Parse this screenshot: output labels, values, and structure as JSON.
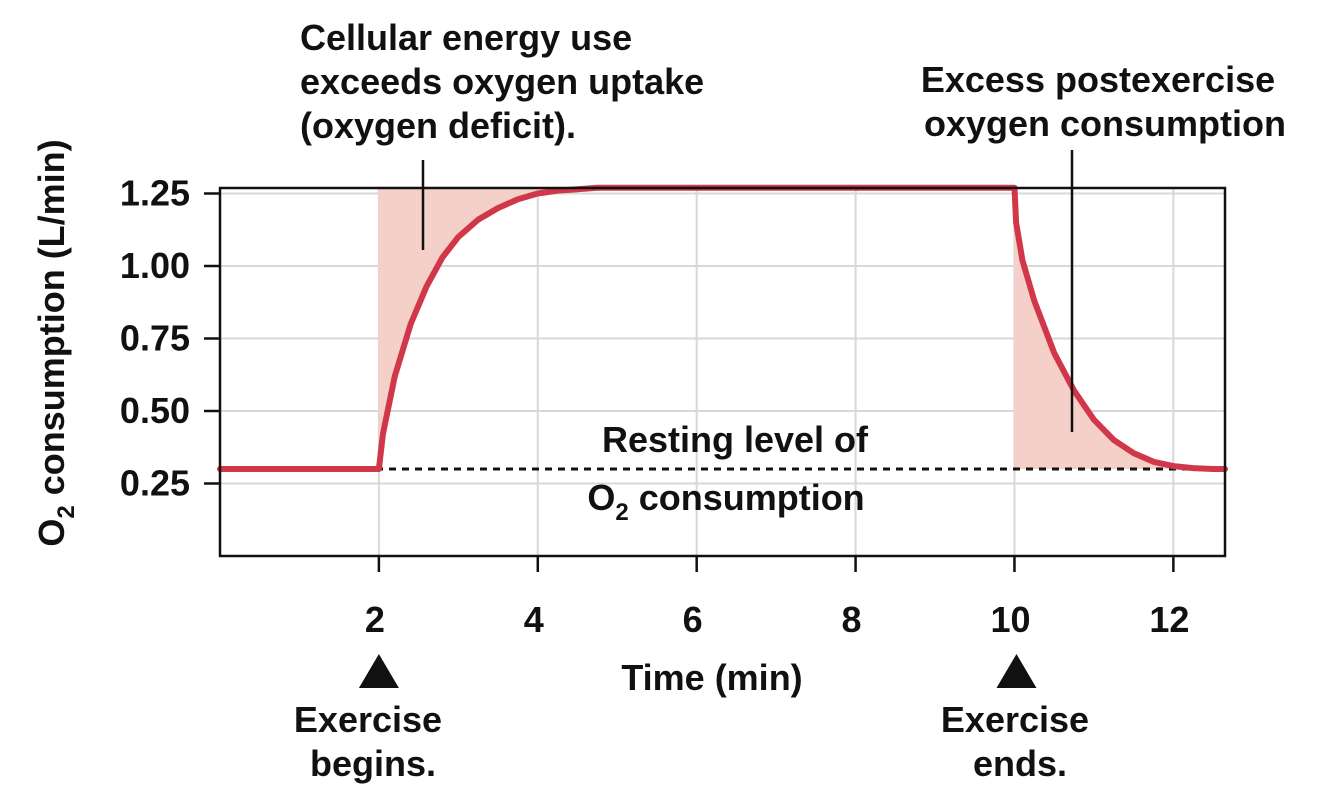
{
  "chart_data": {
    "type": "line",
    "title": "",
    "xlabel": "Time (min)",
    "ylabel": "O",
    "ylabel_sub": "2",
    "ylabel_rest": " consumption (L/min)",
    "xlim": [
      0,
      12.65
    ],
    "ylim": [
      -0.0,
      1.25
    ],
    "x_ticks": [
      2,
      4,
      6,
      8,
      10,
      12
    ],
    "x_tick_labels": [
      "2",
      "4",
      "6",
      "8",
      "10",
      "12"
    ],
    "y_ticks": [
      0.25,
      0.5,
      0.75,
      1.0,
      1.25
    ],
    "y_tick_labels": [
      "0.25",
      "0.50",
      "0.75",
      "1.00",
      "1.25"
    ],
    "grid": true,
    "resting_level": 0.3,
    "exercise_level": 1.27,
    "exercise_start": 2,
    "exercise_end": 10,
    "series": [
      {
        "name": "O2 consumption",
        "color": "#d0384a",
        "x": [
          0,
          2,
          2.05,
          2.2,
          2.4,
          2.6,
          2.8,
          3.0,
          3.25,
          3.5,
          3.75,
          4.0,
          4.25,
          4.5,
          4.75,
          5.0,
          6,
          8,
          10,
          10.02,
          10.1,
          10.25,
          10.5,
          10.75,
          11.0,
          11.25,
          11.5,
          11.75,
          12.0,
          12.25,
          12.5,
          12.65
        ],
        "y": [
          0.3,
          0.3,
          0.42,
          0.62,
          0.8,
          0.93,
          1.03,
          1.1,
          1.16,
          1.2,
          1.23,
          1.25,
          1.26,
          1.265,
          1.27,
          1.27,
          1.27,
          1.27,
          1.27,
          1.15,
          1.02,
          0.88,
          0.7,
          0.57,
          0.47,
          0.4,
          0.355,
          0.325,
          0.31,
          0.303,
          0.3,
          0.3
        ]
      }
    ],
    "annotations": {
      "deficit_lines": [
        "Cellular energy use",
        "exceeds oxygen uptake",
        "(oxygen deficit)."
      ],
      "epoc_lines": [
        "Excess postexercise",
        "oxygen consumption"
      ],
      "resting_line1": "Resting level of",
      "resting_line2_pre": "O",
      "resting_line2_sub": "2",
      "resting_line2_post": " consumption",
      "begin_lines": [
        "Exercise",
        "begins."
      ],
      "end_lines": [
        "Exercise",
        "ends."
      ]
    },
    "colors": {
      "curve": "#d0384a",
      "fill": "#f5d0c8",
      "grid": "#d8d8d8",
      "axis": "#111111"
    }
  }
}
